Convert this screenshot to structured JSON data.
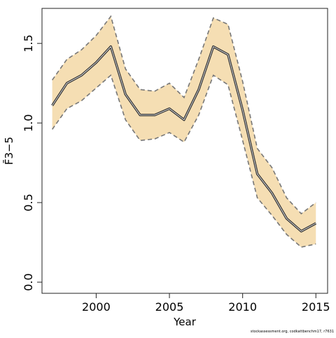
{
  "chart_data": {
    "type": "line",
    "xlabel": "Year",
    "ylabel": "F̄3−5",
    "xlim": [
      1996.3,
      2015.8
    ],
    "ylim": [
      -0.07,
      1.72
    ],
    "x_ticks": [
      2000,
      2005,
      2010,
      2015
    ],
    "y_ticks": [
      0.0,
      0.5,
      1.0,
      1.5
    ],
    "x_tick_labels": [
      "2000",
      "2005",
      "2010",
      "2015"
    ],
    "y_tick_labels": [
      "0.0",
      "0.5",
      "1.0",
      "1.5"
    ],
    "grid": false,
    "band_color": "#f5deb3",
    "line_color": "#333333",
    "bound_color": "#777777",
    "x": [
      1997,
      1998,
      1999,
      2000,
      2001,
      2002,
      2003,
      2004,
      2005,
      2006,
      2007,
      2008,
      2009,
      2010,
      2011,
      2012,
      2013,
      2014,
      2015
    ],
    "series": [
      {
        "values": [
          1.11,
          1.25,
          1.3,
          1.38,
          1.48,
          1.18,
          1.05,
          1.05,
          1.09,
          1.02,
          1.21,
          1.48,
          1.43,
          1.08,
          0.68,
          0.56,
          0.4,
          0.32,
          0.37
        ]
      },
      {
        "values": [
          1.27,
          1.4,
          1.46,
          1.55,
          1.67,
          1.34,
          1.21,
          1.2,
          1.25,
          1.16,
          1.4,
          1.66,
          1.62,
          1.26,
          0.84,
          0.72,
          0.53,
          0.43,
          0.5
        ]
      },
      {
        "values": [
          0.96,
          1.09,
          1.14,
          1.22,
          1.3,
          1.02,
          0.89,
          0.9,
          0.94,
          0.88,
          1.05,
          1.3,
          1.24,
          0.89,
          0.53,
          0.42,
          0.3,
          0.22,
          0.24
        ]
      }
    ]
  },
  "footer": "stockassessment.org, codkattbenchm17, r7631"
}
